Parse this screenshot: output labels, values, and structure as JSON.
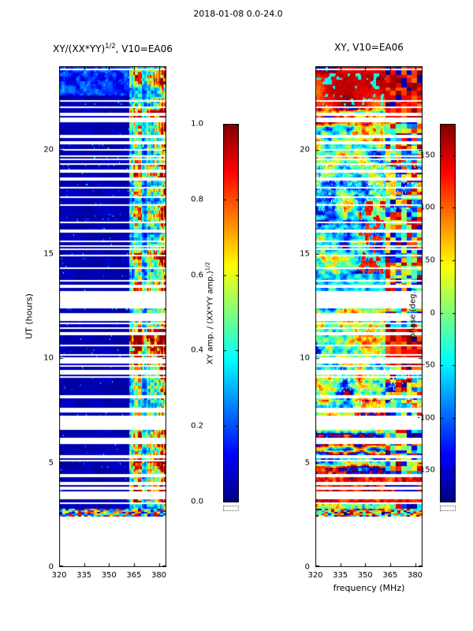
{
  "figure_title": "2018-01-08 0.0-24.0",
  "left_panel": {
    "title_prefix": "XY/(XX*YY)",
    "title_sup": "1/2",
    "title_suffix": ", V10=EA06",
    "ylabel": "UT (hours)",
    "x_tick_labels": [
      "320",
      "335",
      "350",
      "365",
      "380"
    ],
    "y_tick_labels": [
      "0",
      "5",
      "10",
      "15",
      "20"
    ]
  },
  "right_panel": {
    "title": "XY, V10=EA06",
    "xlabel": "frequency (MHz)",
    "x_tick_labels": [
      "320",
      "335",
      "350",
      "365",
      "380"
    ],
    "y_tick_labels": [
      "0",
      "5",
      "10",
      "15",
      "20"
    ]
  },
  "colorbar_amp": {
    "label_prefix": "XY amp. / (XX*YY amp.)",
    "label_sup": "1/2",
    "tick_labels": [
      "1.0",
      "0.8",
      "0.6",
      "0.4",
      "0.2",
      "0.0"
    ]
  },
  "colorbar_phase": {
    "label": "phase (deg.)",
    "tick_labels": [
      "150",
      "100",
      "50",
      "0",
      "-50",
      "-100",
      "-150"
    ]
  },
  "colors": {
    "background": "#ffffff",
    "axes": "#000000",
    "colormap": "jet",
    "flagged_color": "#ffffff",
    "low_amp_color": "#000080"
  },
  "chart_data": [
    {
      "id": "xy_amplitude_waterfall",
      "type": "heatmap",
      "title": "XY/(XX*YY)^(1/2), V10=EA06",
      "xlabel": "frequency (MHz)",
      "ylabel": "UT (hours)",
      "xlim": [
        320,
        384.5
      ],
      "ylim": [
        0,
        24
      ],
      "zlim": [
        0.0,
        1.0
      ],
      "x_ticks": [
        320,
        335,
        350,
        365,
        380
      ],
      "y_ticks": [
        0,
        5,
        10,
        15,
        20
      ],
      "colormap": "jet",
      "colorbar_label": "XY amp. / (XX*YY amp.)^(1/2)",
      "colorbar_ticks": [
        1.0,
        0.8,
        0.6,
        0.4,
        0.2,
        0.0
      ],
      "description": "Cross-hand amplitude ratio vs frequency (320-384 MHz) and UT (0-24 h). Background level ~0.05 (dark blue). Strong contaminated band at 362-384 MHz with values 0.2-1.0. White horizontal stripes are flagged integrations; no data below 2.4 h UT; multicolour calibration stripe near 2.5 h UT; mottled blue/cyan texture above 22.5 h.",
      "features": {
        "no_data_below_hour": 2.4,
        "cal_stripe_hours": [
          2.45,
          2.78
        ],
        "band_mhz": [
          362,
          384.5
        ],
        "band_profile": [
          [
            362,
            365,
            0.5
          ],
          [
            365,
            370,
            0.68
          ],
          [
            370,
            373,
            0.38
          ],
          [
            373,
            377,
            0.52
          ],
          [
            377,
            381,
            0.66
          ],
          [
            381,
            385,
            0.8
          ]
        ],
        "band_hot_hours": [
          [
            3.1,
            4.3,
            1.35
          ],
          [
            4.8,
            5.5,
            1.3
          ],
          [
            9.6,
            11.4,
            1.55
          ],
          [
            14.6,
            15.3,
            1.25
          ],
          [
            21.3,
            22.4,
            1.5
          ]
        ],
        "top_texture_above_hour": 22.55,
        "background_level": 0.05,
        "flag_densities": [
          [
            2.78,
            3.1,
            0.1
          ],
          [
            3.1,
            4.3,
            0.28
          ],
          [
            4.3,
            6.5,
            0.22
          ],
          [
            6.5,
            9.0,
            0.26
          ],
          [
            9.0,
            9.7,
            0.45
          ],
          [
            9.7,
            12.6,
            0.34
          ],
          [
            12.6,
            13.8,
            0.45
          ],
          [
            13.8,
            18.0,
            0.1
          ],
          [
            18.0,
            20.2,
            0.16
          ],
          [
            20.2,
            21.2,
            0.22
          ],
          [
            21.2,
            21.8,
            0.45
          ],
          [
            21.8,
            22.1,
            0.3
          ],
          [
            22.1,
            22.5,
            0.45
          ],
          [
            22.5,
            24.0,
            0.06
          ]
        ],
        "forced_gap_hours": [
          3.35,
          3.8,
          4.45,
          5.3,
          6.1,
          7.0,
          7.55,
          8.2,
          9.3,
          9.9,
          10.6,
          11.2,
          11.9,
          12.5,
          13.0,
          13.4,
          14.3,
          15.2,
          16.1,
          17.3,
          18.6,
          19.5,
          20.35,
          21.5,
          22.3
        ]
      }
    },
    {
      "id": "xy_phase_waterfall",
      "type": "heatmap",
      "title": "XY, V10=EA06",
      "xlabel": "frequency (MHz)",
      "ylabel": "UT (hours)",
      "xlim": [
        320,
        384.5
      ],
      "ylim": [
        0,
        24
      ],
      "zlim": [
        -180,
        180
      ],
      "x_ticks": [
        320,
        335,
        350,
        365,
        380
      ],
      "y_ticks": [
        0,
        5,
        10,
        15,
        20
      ],
      "colormap": "jet",
      "colorbar_label": "phase (deg.)",
      "colorbar_ticks": [
        150,
        100,
        50,
        0,
        -50,
        -100,
        -150
      ],
      "description": "XY cross-hand phase (-180 to 180 deg) vs frequency and UT. Noisy rainbow field; red/orange saturated patches above 22 h; warm orange patch 14-17.5 h at high frequencies; cyan band 12.6-14 h; alternating orange/cyan row streaks 4.3-8 h and 20.2-22 h; strong orange band 3.1-4.3 h with dark-blue blob at 360-381 MHz; coherent blocky phases in the 362-384 MHz band; same flagged white rows as amplitude panel.",
      "features": {
        "orange_band_hours": [
          3.1,
          4.3
        ],
        "blue_blob": {
          "hours": [
            3.25,
            3.95
          ],
          "mhz": [
            360,
            381
          ]
        },
        "red_top_above_hour": 22.0,
        "warm_patch": {
          "hours": [
            14.0,
            17.5
          ],
          "mhz_min": 346
        },
        "cyan_band_hours": [
          12.6,
          14.0
        ],
        "streaky_hours": [
          [
            4.3,
            8.0
          ],
          [
            20.2,
            22.0
          ]
        ],
        "pale_speckle_hours": [
          [
            7.0,
            9.5
          ],
          [
            17.0,
            19.5
          ]
        ]
      }
    }
  ]
}
